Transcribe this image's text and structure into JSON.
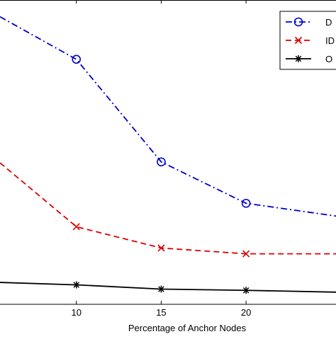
{
  "chart_data": {
    "type": "line",
    "xlabel": "Percentage of Anchor Nodes",
    "ylabel": "",
    "title": "",
    "xlim": [
      5.5,
      25.3
    ],
    "ylim": [
      0,
      1
    ],
    "x_ticks": [
      "10",
      "15",
      "20"
    ],
    "grid": false,
    "legend_position": "top-right",
    "series": [
      {
        "name": "D",
        "color": "#0000cc",
        "line_style": "dash-dot",
        "marker": "circle",
        "x": [
          5.5,
          10,
          15,
          20,
          25.3
        ],
        "y": [
          0.945,
          0.805,
          0.468,
          0.332,
          0.29
        ]
      },
      {
        "name": "ID",
        "color": "#dd0000",
        "line_style": "dashed",
        "marker": "x",
        "x": [
          5.5,
          10,
          15,
          20,
          25.3
        ],
        "y": [
          0.465,
          0.255,
          0.185,
          0.166,
          0.166
        ]
      },
      {
        "name": "O",
        "color": "#000000",
        "line_style": "solid",
        "marker": "star",
        "x": [
          5.5,
          10,
          15,
          20,
          25.3
        ],
        "y": [
          0.072,
          0.064,
          0.05,
          0.046,
          0.04
        ]
      }
    ]
  }
}
